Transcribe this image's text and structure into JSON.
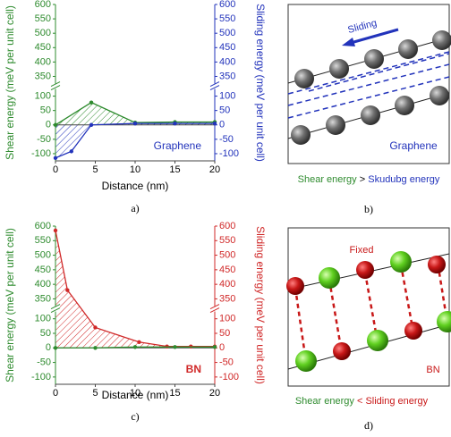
{
  "chart_data": [
    {
      "type": "line",
      "panel_label": "a)",
      "xlabel": "Distance (nm)",
      "ylabel": "Shear energy (meV per unit cell)",
      "y2label": "Sliding energy (meV per unit cell)",
      "annotation": "Graphene",
      "annotation_color": "#2233bb",
      "y_color": "#2e8b2e",
      "y2_color": "#2233bb",
      "xlim": [
        0,
        20
      ],
      "xticks": [
        0,
        5,
        10,
        15,
        20
      ],
      "ylim": [
        -125,
        600
      ],
      "ybreak": [
        125,
        325
      ],
      "yticks": [
        -100,
        -50,
        0,
        50,
        100,
        350,
        400,
        450,
        500,
        550,
        600
      ],
      "y2lim": [
        -125,
        600
      ],
      "y2ticks": [
        -100,
        -50,
        0,
        50,
        100,
        350,
        400,
        450,
        500,
        550,
        600
      ],
      "series": [
        {
          "color": "#2e8b2e",
          "axis": "y",
          "hatch": true,
          "x": [
            0,
            4.5,
            10,
            15,
            20
          ],
          "values": [
            0,
            78,
            8,
            10,
            10
          ]
        },
        {
          "color": "#2233bb",
          "axis": "y2",
          "hatch": true,
          "x": [
            0,
            2,
            4.5,
            10,
            15,
            20
          ],
          "values": [
            -115,
            -92,
            0,
            5,
            5,
            5
          ]
        }
      ]
    },
    {
      "type": "line",
      "panel_label": "c)",
      "xlabel": "Distance (nm)",
      "ylabel": "Shear energy (meV per unit cell)",
      "y2label": "Sliding energy (meV per unit cell)",
      "annotation": "BN",
      "annotation_color": "#d02828",
      "y_color": "#2e8b2e",
      "y2_color": "#d02828",
      "xlim": [
        0,
        20
      ],
      "xticks": [
        0,
        5,
        10,
        15,
        20
      ],
      "ylim": [
        -125,
        600
      ],
      "ybreak": [
        125,
        325
      ],
      "yticks": [
        -100,
        -50,
        0,
        50,
        100,
        350,
        400,
        450,
        500,
        550,
        600
      ],
      "y2lim": [
        -125,
        600
      ],
      "y2ticks": [
        -100,
        -50,
        0,
        50,
        100,
        350,
        400,
        450,
        500,
        550,
        600
      ],
      "series": [
        {
          "color": "#d02828",
          "axis": "y2",
          "hatch": true,
          "x": [
            0,
            1.5,
            5,
            10.5,
            14,
            17,
            20
          ],
          "values": [
            585,
            380,
            70,
            20,
            5,
            5,
            5
          ]
        },
        {
          "color": "#2e8b2e",
          "axis": "y",
          "hatch": false,
          "x": [
            0,
            5,
            10,
            15,
            20
          ],
          "values": [
            0,
            0,
            3,
            3,
            3
          ]
        }
      ]
    }
  ],
  "panels": {
    "b": {
      "label": "b)",
      "arrow_text": "Sliding",
      "material": "Graphene",
      "caption": [
        "Shear energy",
        ">",
        "Skudubg energy"
      ]
    },
    "d": {
      "label": "d)",
      "top_text": "Fixed",
      "material": "BN",
      "caption": [
        "Shear energy",
        "<",
        "Sliding energy"
      ]
    }
  }
}
